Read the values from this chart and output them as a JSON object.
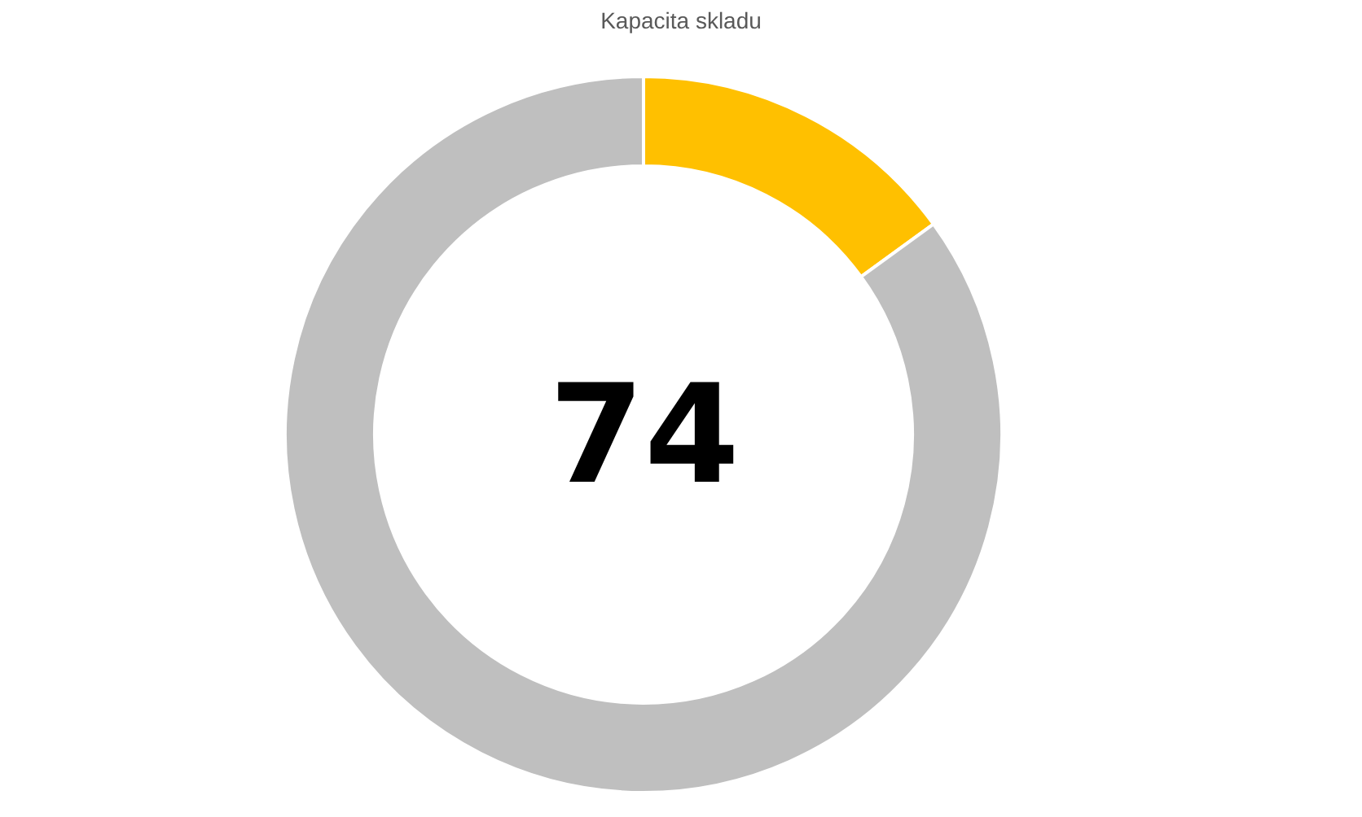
{
  "chart_data": {
    "type": "donut",
    "title": "Kapacita skladu",
    "categories": [
      null,
      null
    ],
    "values": [
      15,
      85
    ],
    "colors": [
      "#ffc000",
      "#bfbfbf"
    ],
    "annotations": [
      "74"
    ],
    "legend": false
  }
}
